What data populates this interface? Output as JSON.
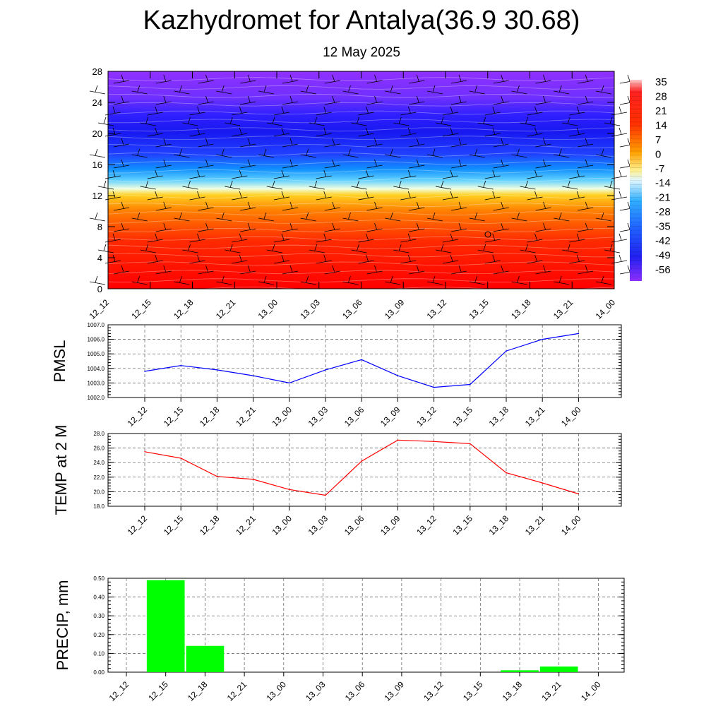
{
  "title": "Kazhydromet for Antalya(36.9 30.68)",
  "subtitle": "12 May 2025",
  "colors": {
    "pmsl_line": "#0000ff",
    "temp_line": "#ff0000",
    "precip_bar": "#00ff00",
    "grid": "#555555"
  },
  "chart_data": [
    {
      "type": "heatmap",
      "name": "temperature-profile",
      "y_ticks": [
        "0",
        "4",
        "8",
        "12",
        "16",
        "20",
        "24",
        "28"
      ],
      "ylim": [
        0,
        28
      ],
      "x_ticks": [
        "12_12",
        "12_15",
        "12_18",
        "12_21",
        "13_00",
        "13_03",
        "13_06",
        "13_09",
        "13_12",
        "13_15",
        "13_18",
        "13_21",
        "14_00"
      ],
      "colorbar_labels": [
        "35",
        "28",
        "21",
        "14",
        "7",
        "0",
        "-7",
        "-14",
        "-21",
        "-28",
        "-35",
        "-42",
        "-49",
        "-56"
      ],
      "colorbar_range": [
        -60,
        38
      ]
    },
    {
      "type": "line",
      "name": "pmsl",
      "ylabel": "PMSL",
      "categories": [
        "12_12",
        "12_15",
        "12_18",
        "12_21",
        "13_00",
        "13_03",
        "13_06",
        "13_09",
        "13_12",
        "13_15",
        "13_18",
        "13_21",
        "14_00"
      ],
      "values": [
        1003.8,
        1004.2,
        1003.9,
        1003.5,
        1003.0,
        1003.9,
        1004.6,
        1003.5,
        1002.7,
        1002.9,
        1005.2,
        1006.0,
        1006.4
      ],
      "ylim": [
        1002.0,
        1007.0
      ],
      "y_ticks": [
        "1002.0",
        "1003.0",
        "1004.0",
        "1005.0",
        "1006.0",
        "1007.0"
      ],
      "grid": true
    },
    {
      "type": "line",
      "name": "temp-2m",
      "ylabel": "TEMP at 2 M",
      "categories": [
        "12_12",
        "12_15",
        "12_18",
        "12_21",
        "13_00",
        "13_03",
        "13_06",
        "13_09",
        "13_12",
        "13_15",
        "13_18",
        "13_21",
        "14_00"
      ],
      "values": [
        25.5,
        24.6,
        22.1,
        21.7,
        20.3,
        19.5,
        24.2,
        27.1,
        26.9,
        26.6,
        22.6,
        21.2,
        19.7
      ],
      "ylim": [
        18.0,
        28.0
      ],
      "y_ticks": [
        "18.0",
        "20.0",
        "22.0",
        "24.0",
        "26.0",
        "28.0"
      ],
      "grid": true
    },
    {
      "type": "bar",
      "name": "precip",
      "ylabel": "PRECIP, mm",
      "categories": [
        "12_12",
        "12_15",
        "12_18",
        "12_21",
        "13_00",
        "13_03",
        "13_06",
        "13_09",
        "13_12",
        "13_15",
        "13_18",
        "13_21",
        "14_00"
      ],
      "values": [
        0,
        0.49,
        0.14,
        0,
        0,
        0,
        0,
        0,
        0,
        0,
        0.01,
        0.03,
        0
      ],
      "ylim": [
        0,
        0.5
      ],
      "y_ticks": [
        "0.00",
        "0.10",
        "0.20",
        "0.30",
        "0.40",
        "0.50"
      ],
      "grid": true
    }
  ]
}
